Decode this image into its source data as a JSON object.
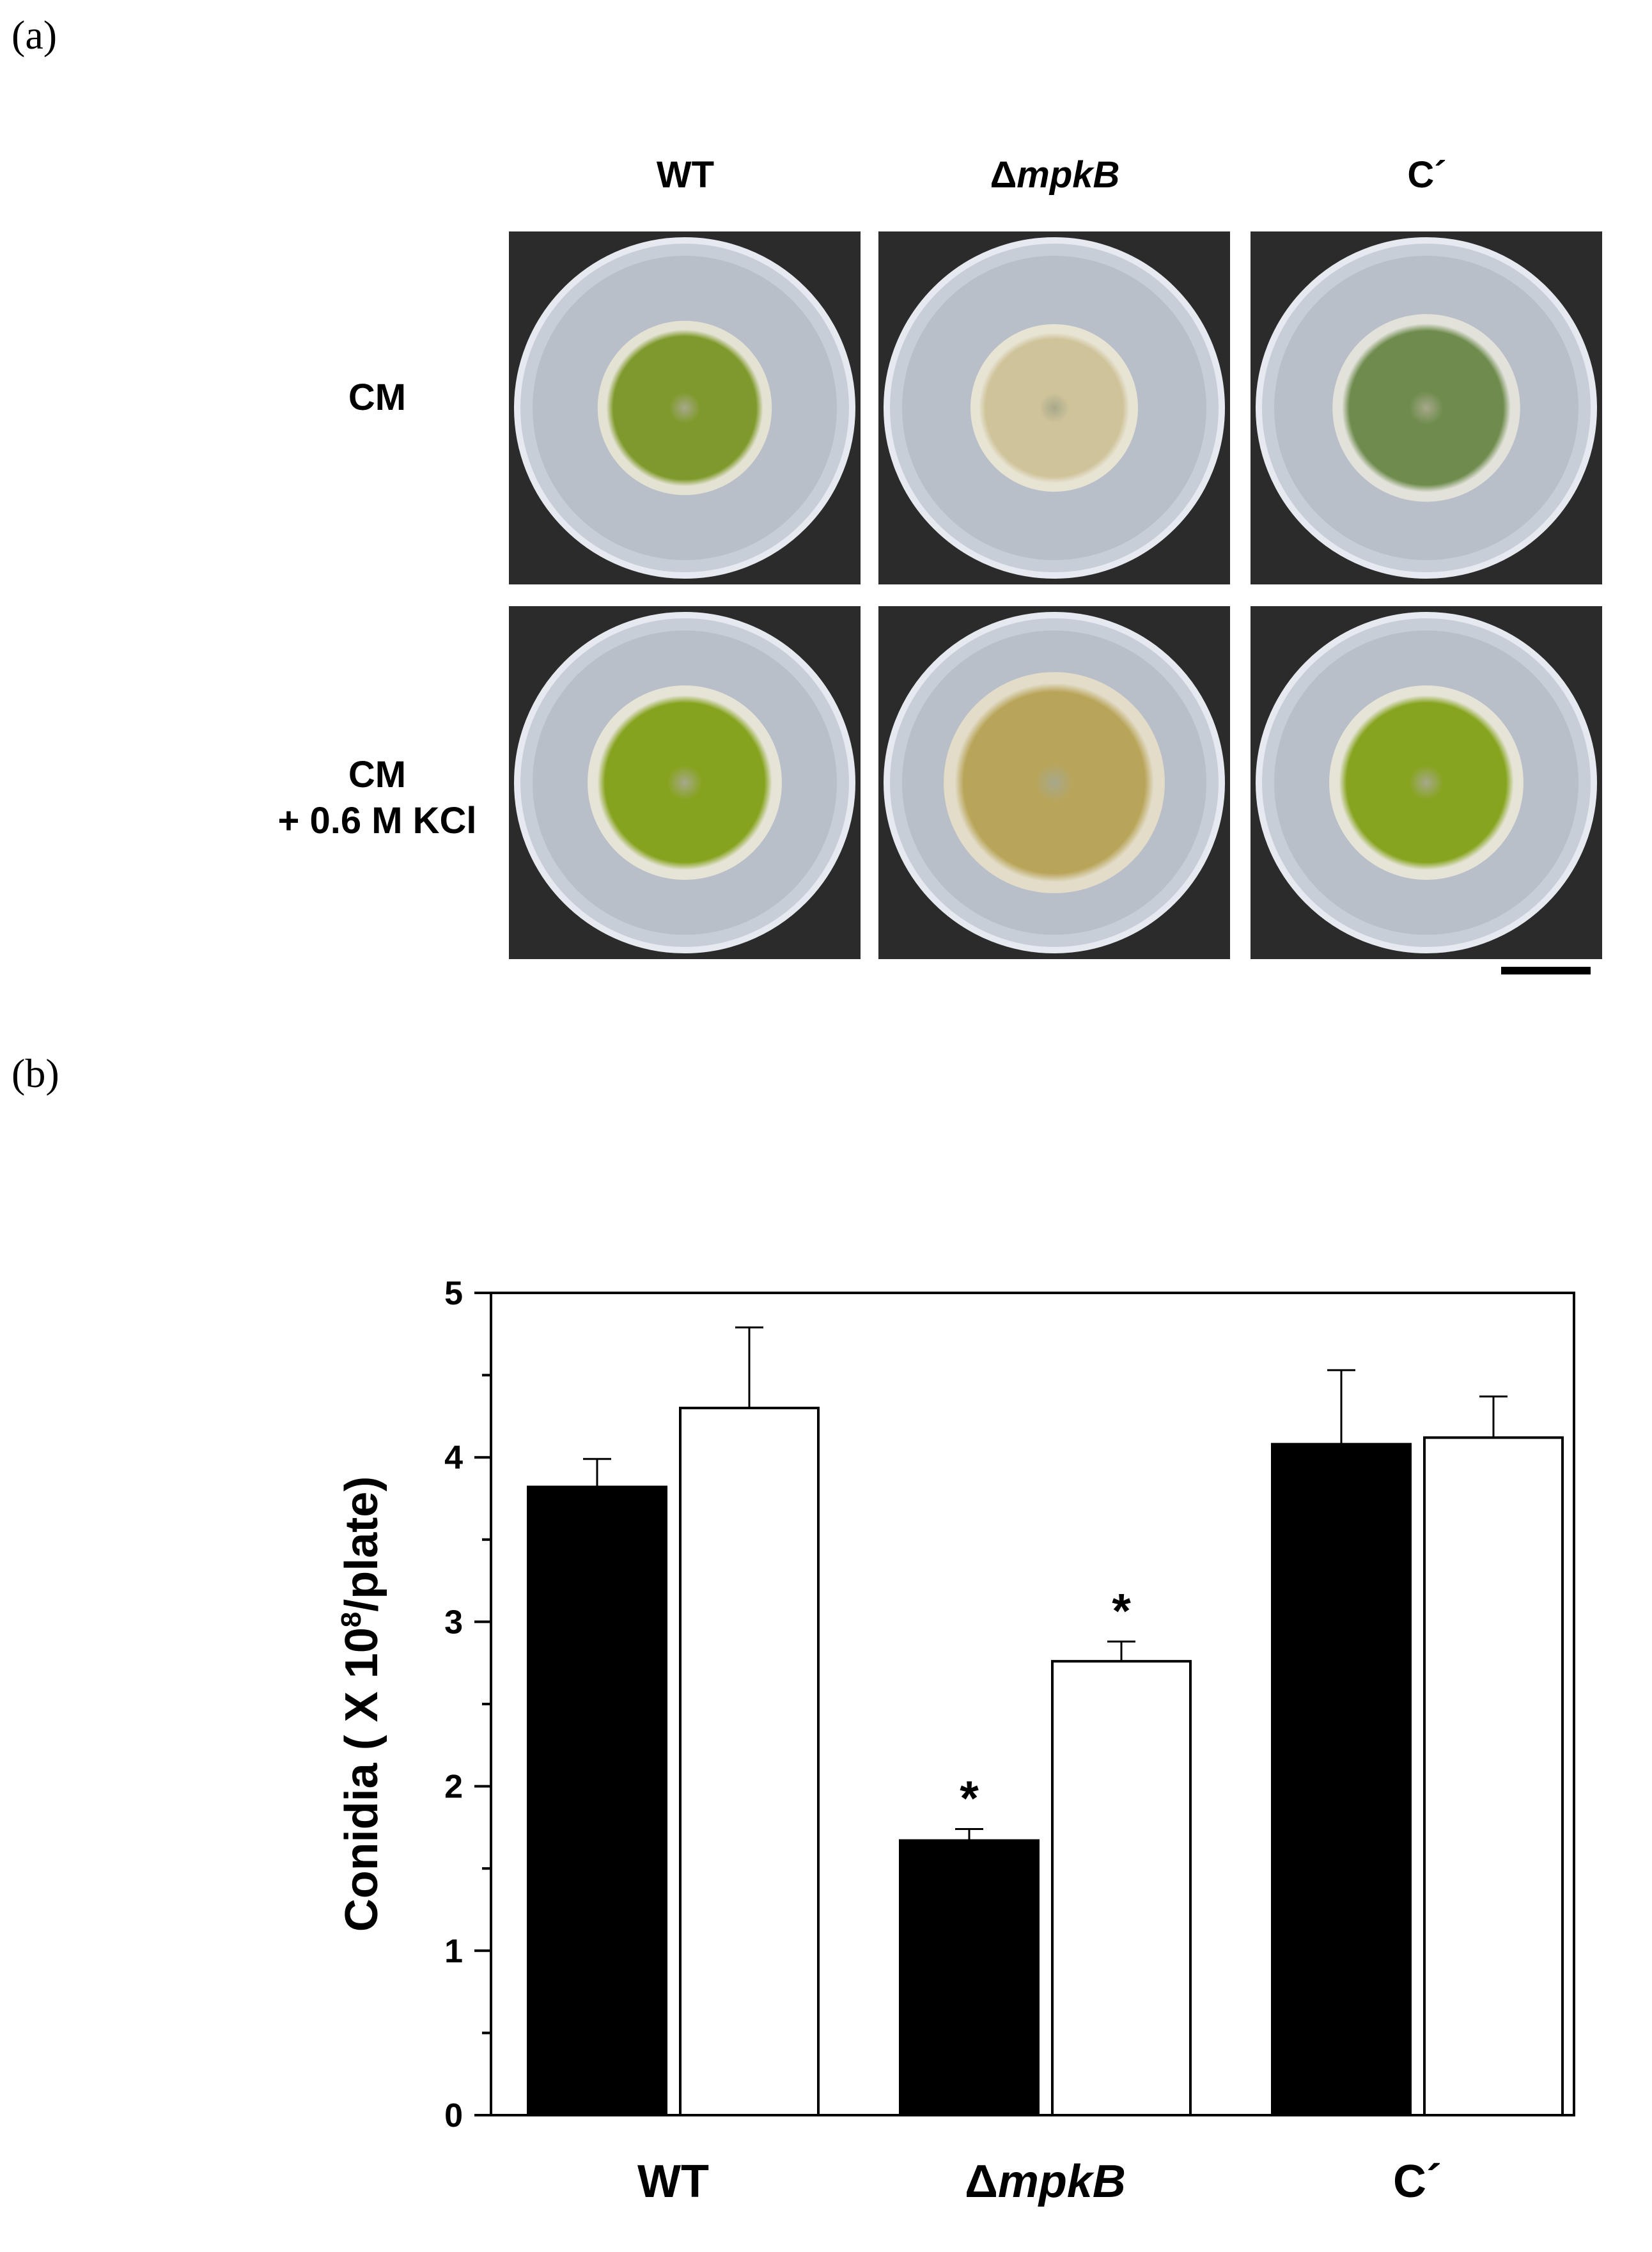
{
  "figure": {
    "panel_a_label": "(a)",
    "panel_b_label": "(b)",
    "columns": [
      {
        "prefix": "WT",
        "italic": ""
      },
      {
        "prefix": "Δ",
        "italic": "mpkB"
      },
      {
        "prefix": "C´",
        "italic": ""
      }
    ],
    "rows": [
      {
        "lines": [
          "CM"
        ]
      },
      {
        "lines": [
          "CM",
          "+ 0.6 M KCl"
        ]
      }
    ],
    "plates": [
      {
        "row": 0,
        "col": 0,
        "colony": "#7f9a2c",
        "edge": "#e4e2d2",
        "radius": 0.52
      },
      {
        "row": 0,
        "col": 1,
        "colony": "#cfc39a",
        "edge": "#e8e4d4",
        "radius": 0.5
      },
      {
        "row": 0,
        "col": 2,
        "colony": "#6f8c4e",
        "edge": "#e2e2da",
        "radius": 0.56
      },
      {
        "row": 1,
        "col": 0,
        "colony": "#86a31f",
        "edge": "#e6e4d6",
        "radius": 0.58
      },
      {
        "row": 1,
        "col": 1,
        "colony": "#b9a55a",
        "edge": "#e2dcc8",
        "radius": 0.66
      },
      {
        "row": 1,
        "col": 2,
        "colony": "#86a41f",
        "edge": "#e6e4d6",
        "radius": 0.58
      }
    ]
  },
  "chart_data": {
    "type": "bar",
    "categories": [
      {
        "prefix": "WT",
        "italic": ""
      },
      {
        "prefix": "Δ",
        "italic": "mpkB"
      },
      {
        "prefix": "C´",
        "italic": ""
      }
    ],
    "ylabel_main": "Conidia ( X 10",
    "ylabel_sup": "8",
    "ylabel_end": "/plate)",
    "ylim": [
      0,
      5
    ],
    "yticks": [
      "0",
      "1",
      "2",
      "3",
      "4",
      "5"
    ],
    "series": [
      {
        "fill": "#000000",
        "values": [
          3.82,
          1.67,
          4.08
        ],
        "errors": [
          0.17,
          0.07,
          0.45
        ],
        "marks": [
          "",
          "*",
          ""
        ]
      },
      {
        "fill": "#ffffff",
        "values": [
          4.3,
          2.76,
          4.12
        ],
        "errors": [
          0.49,
          0.12,
          0.25
        ],
        "marks": [
          "",
          "*",
          ""
        ]
      }
    ]
  }
}
